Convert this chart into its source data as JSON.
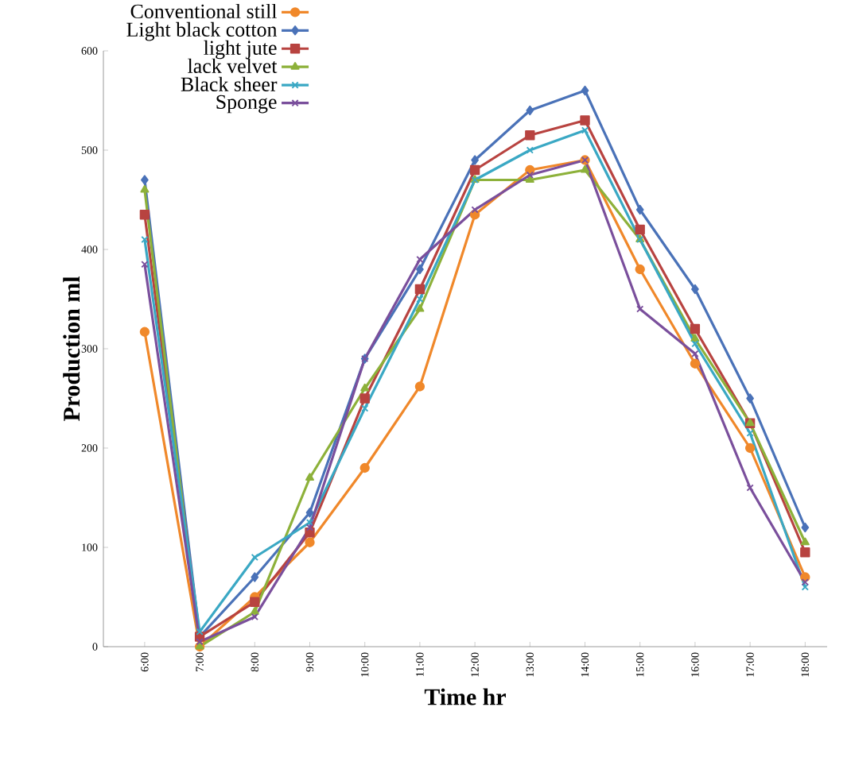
{
  "chart_data": {
    "type": "line",
    "xlabel": "Time hr",
    "ylabel": "Production ml",
    "categories": [
      "6:00",
      "7:00",
      "8:00",
      "9:00",
      "10:00",
      "11:00",
      "12:00",
      "13:00",
      "14:00",
      "15:00",
      "16:00",
      "17:00",
      "18:00"
    ],
    "ylim": [
      0,
      600
    ],
    "yticks": [
      0,
      100,
      200,
      300,
      400,
      500,
      600
    ],
    "grid": false,
    "legend": "top left",
    "line_style": "solid",
    "series": [
      {
        "name": "Conventional still",
        "color": "#f0882a",
        "marker": "circle",
        "values": [
          317,
          0,
          50,
          105,
          180,
          262,
          435,
          480,
          490,
          380,
          285,
          200,
          70
        ]
      },
      {
        "name": "Light black cotton",
        "color": "#4a72b8",
        "marker": "diamond",
        "values": [
          470,
          10,
          70,
          135,
          290,
          380,
          490,
          540,
          560,
          440,
          360,
          250,
          120
        ]
      },
      {
        "name": "light jute",
        "color": "#b84340",
        "marker": "square",
        "values": [
          435,
          10,
          45,
          115,
          250,
          360,
          480,
          515,
          530,
          420,
          320,
          225,
          95
        ]
      },
      {
        "name": "lack velvet",
        "color": "#8db13a",
        "marker": "triangle",
        "values": [
          460,
          0,
          35,
          170,
          260,
          340,
          470,
          470,
          480,
          410,
          310,
          225,
          105
        ]
      },
      {
        "name": "Black sheer",
        "color": "#3aa8c4",
        "marker": "cross",
        "values": [
          410,
          15,
          90,
          125,
          240,
          350,
          470,
          500,
          520,
          410,
          305,
          215,
          60
        ]
      },
      {
        "name": "Sponge",
        "color": "#7a4f9c",
        "marker": "cross",
        "values": [
          385,
          5,
          30,
          120,
          290,
          390,
          440,
          475,
          490,
          340,
          295,
          160,
          65
        ]
      }
    ]
  }
}
